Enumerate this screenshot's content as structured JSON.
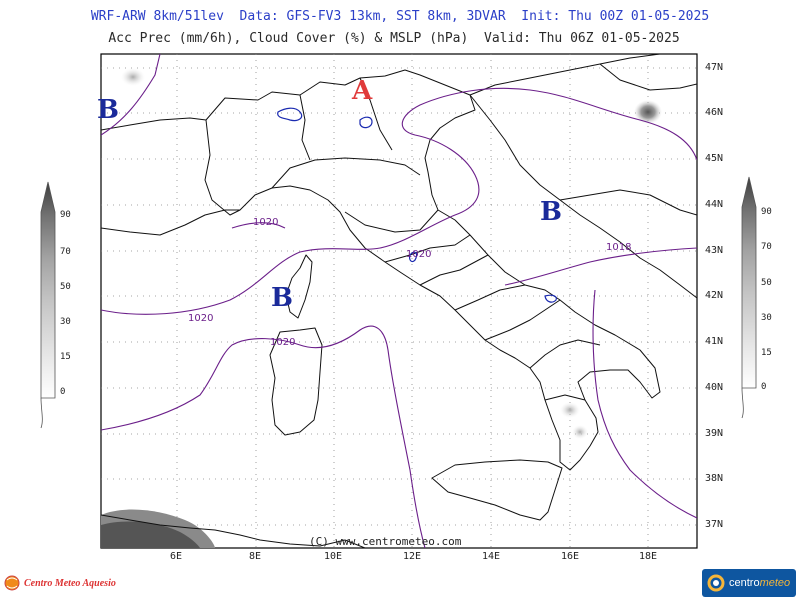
{
  "header": {
    "line1": "WRF-ARW 8km/51lev  Data: GFS-FV3 13km, SST 8km, 3DVAR  Init: Thu 00Z 01-05-2025",
    "line2": "Acc Prec (mm/6h), Cloud Cover (%) & MSLP (hPa)  Valid: Thu 06Z 01-05-2025"
  },
  "map": {
    "latitude_labels": [
      "47N",
      "46N",
      "45N",
      "44N",
      "43N",
      "42N",
      "41N",
      "40N",
      "39N",
      "38N",
      "37N"
    ],
    "longitude_labels": [
      "6E",
      "8E",
      "10E",
      "12E",
      "14E",
      "16E",
      "18E"
    ],
    "pressure_centers": [
      {
        "letter": "A",
        "meaning": "high",
        "color": "#e03a3a"
      },
      {
        "letter": "B",
        "meaning": "low",
        "color": "#1a2a9a"
      },
      {
        "letter": "B",
        "meaning": "low",
        "color": "#1a2a9a"
      },
      {
        "letter": "B",
        "meaning": "low",
        "color": "#1a2a9a"
      }
    ],
    "isobar_labels": [
      "1020",
      "1020",
      "1020",
      "1020",
      "1018"
    ],
    "copyright": "(C) www.centrometeo.com"
  },
  "cloud_cover_bar": {
    "ticks": [
      "90",
      "70",
      "50",
      "30",
      "15",
      "0"
    ]
  },
  "precip_bar": {
    "ticks": [
      "90",
      "70",
      "50",
      "30",
      "15",
      "0"
    ]
  },
  "footer": {
    "left_logo_text": "Centro Meteo Aquesio",
    "right_logo_text_a": "centro",
    "right_logo_text_b": "meteo"
  },
  "colors": {
    "isobar": "#6b1f8a",
    "coast": "#111111",
    "high": "#e03a3a",
    "low": "#1a2a9a",
    "title": "#2b3fc8",
    "precip_contour": "#1a2ab0"
  }
}
